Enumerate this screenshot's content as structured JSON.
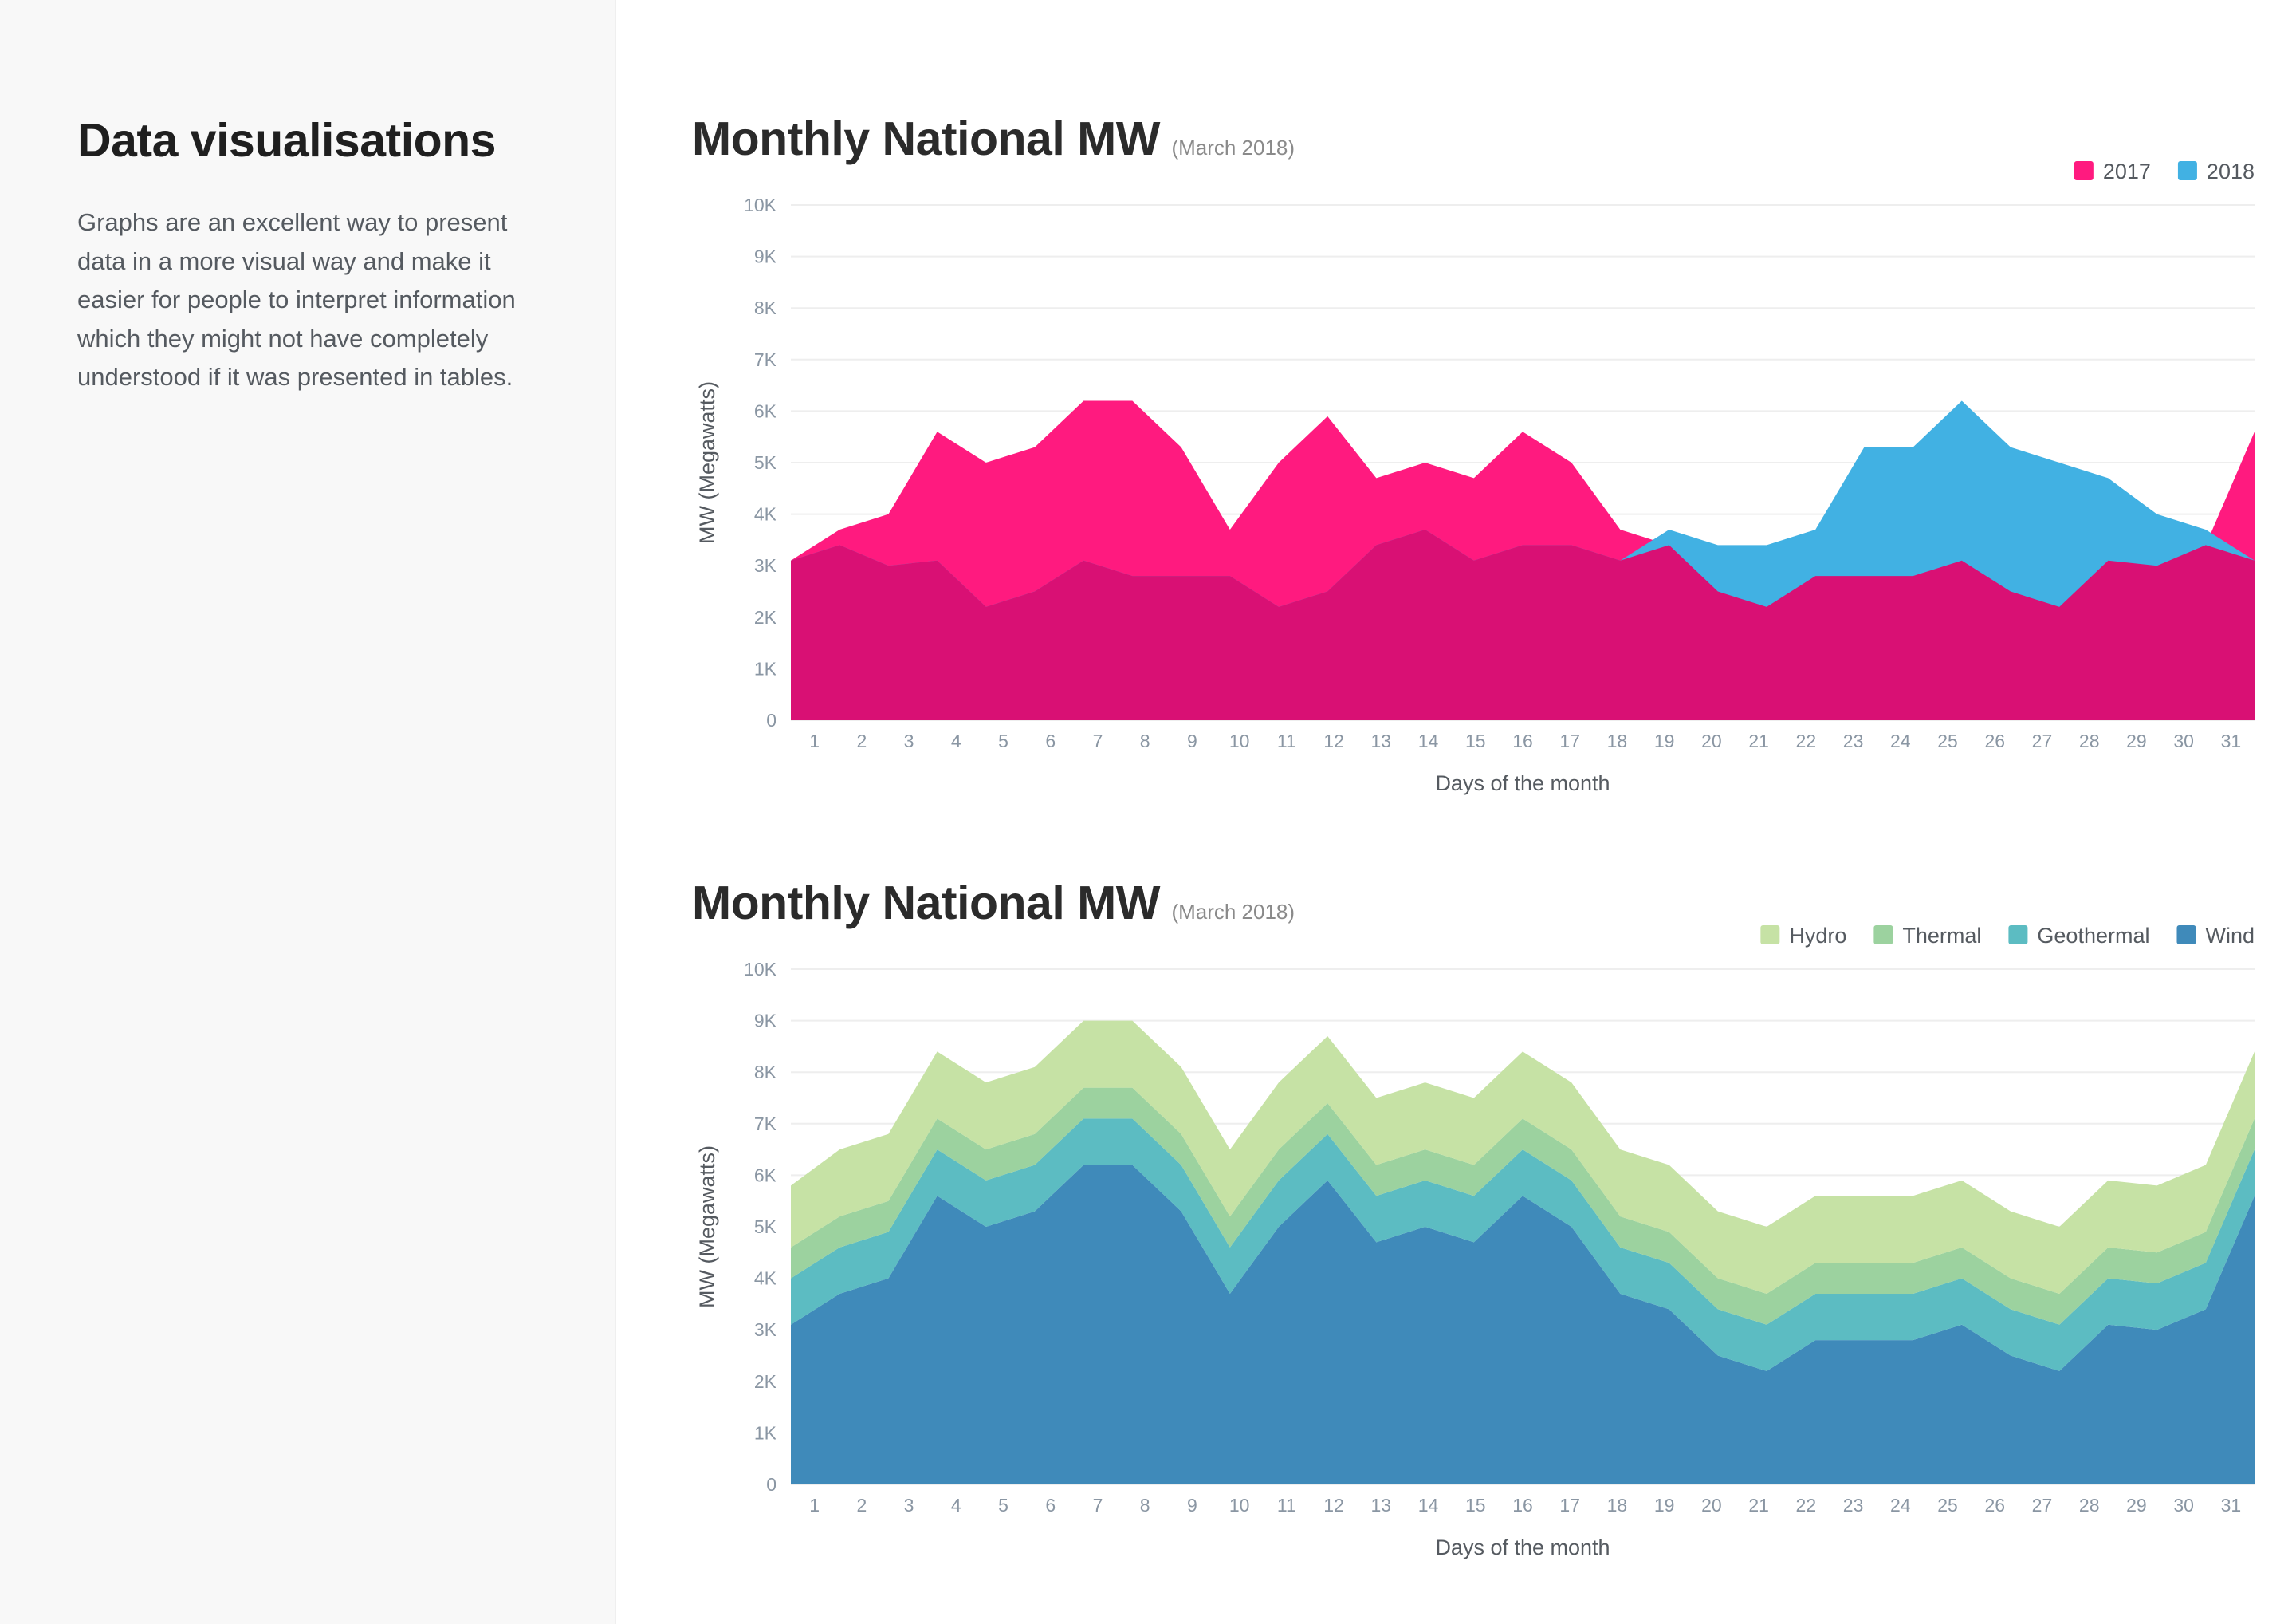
{
  "sidebar": {
    "title": "Data visualisations",
    "description": "Graphs are an excellent way to present data in a more visual way and make it easier for people to interpret information which they might not have completely understood if it was presented in tables."
  },
  "chart_data": [
    {
      "type": "area",
      "title": "Monthly National MW",
      "subtitle": "(March 2018)",
      "xlabel": "Days of the month",
      "ylabel": "MW (Megawatts)",
      "ylim": [
        0,
        10000
      ],
      "yticks": [
        "0",
        "1K",
        "2K",
        "3K",
        "4K",
        "5K",
        "6K",
        "7K",
        "8K",
        "9K",
        "10K"
      ],
      "grid": true,
      "legend": "top-right",
      "stacked": false,
      "x": [
        "1",
        "2",
        "3",
        "4",
        "5",
        "6",
        "7",
        "8",
        "9",
        "10",
        "11",
        "12",
        "13",
        "14",
        "15",
        "16",
        "17",
        "18",
        "19",
        "20",
        "21",
        "22",
        "23",
        "24",
        "25",
        "26",
        "27",
        "28",
        "29",
        "30",
        "31"
      ],
      "series": [
        {
          "name": "2017",
          "color": "#ff1a7f",
          "values": [
            3100,
            3700,
            4000,
            5600,
            5000,
            5300,
            6200,
            6200,
            5300,
            3700,
            5000,
            5900,
            4700,
            5000,
            4700,
            5600,
            5000,
            3700,
            3400,
            2500,
            2200,
            2800,
            2800,
            2800,
            3100,
            2500,
            2200,
            3100,
            3000,
            3400,
            5600
          ]
        },
        {
          "name": "2018",
          "color": "#41b1e3",
          "values": [
            3100,
            3400,
            3000,
            3100,
            2200,
            2500,
            3100,
            2800,
            2800,
            2800,
            2200,
            2500,
            3400,
            3700,
            3100,
            3400,
            3400,
            3100,
            3700,
            3400,
            3400,
            3700,
            5300,
            5300,
            6200,
            5300,
            5000,
            4700,
            4000,
            3700,
            3100
          ]
        }
      ],
      "overlap_color": "#d91074"
    },
    {
      "type": "area",
      "title": "Monthly National MW",
      "subtitle": "(March 2018)",
      "xlabel": "Days of the month",
      "ylabel": "MW (Megawatts)",
      "ylim": [
        0,
        10000
      ],
      "yticks": [
        "0",
        "1K",
        "2K",
        "3K",
        "4K",
        "5K",
        "6K",
        "7K",
        "8K",
        "9K",
        "10K"
      ],
      "grid": true,
      "legend": "top-right",
      "stacked": true,
      "x": [
        "1",
        "2",
        "3",
        "4",
        "5",
        "6",
        "7",
        "8",
        "9",
        "10",
        "11",
        "12",
        "13",
        "14",
        "15",
        "16",
        "17",
        "18",
        "19",
        "20",
        "21",
        "22",
        "23",
        "24",
        "25",
        "26",
        "27",
        "28",
        "29",
        "30",
        "31"
      ],
      "series": [
        {
          "name": "Hydro",
          "color": "#c6e2a5",
          "values": [
            1200,
            1300,
            1300,
            1300,
            1300,
            1300,
            1300,
            1300,
            1300,
            1300,
            1300,
            1300,
            1300,
            1300,
            1300,
            1300,
            1300,
            1300,
            1300,
            1300,
            1300,
            1300,
            1300,
            1300,
            1300,
            1300,
            1300,
            1300,
            1300,
            1300,
            1300
          ]
        },
        {
          "name": "Thermal",
          "color": "#9cd29f",
          "values": [
            600,
            600,
            600,
            600,
            600,
            600,
            600,
            600,
            600,
            600,
            600,
            600,
            600,
            600,
            600,
            600,
            600,
            600,
            600,
            600,
            600,
            600,
            600,
            600,
            600,
            600,
            600,
            600,
            600,
            600,
            600
          ]
        },
        {
          "name": "Geothermal",
          "color": "#5cbcc2",
          "values": [
            900,
            900,
            900,
            900,
            900,
            900,
            900,
            900,
            900,
            900,
            900,
            900,
            900,
            900,
            900,
            900,
            900,
            900,
            900,
            900,
            900,
            900,
            900,
            900,
            900,
            900,
            900,
            900,
            900,
            900,
            900
          ]
        },
        {
          "name": "Wind",
          "color": "#3f8aba",
          "values": [
            3100,
            3700,
            4000,
            5600,
            5000,
            5300,
            6200,
            6200,
            5300,
            3700,
            5000,
            5900,
            4700,
            5000,
            4700,
            5600,
            5000,
            3700,
            3400,
            2500,
            2200,
            2800,
            2800,
            2800,
            3100,
            2500,
            2200,
            3100,
            3000,
            3400,
            5600
          ]
        }
      ]
    }
  ]
}
